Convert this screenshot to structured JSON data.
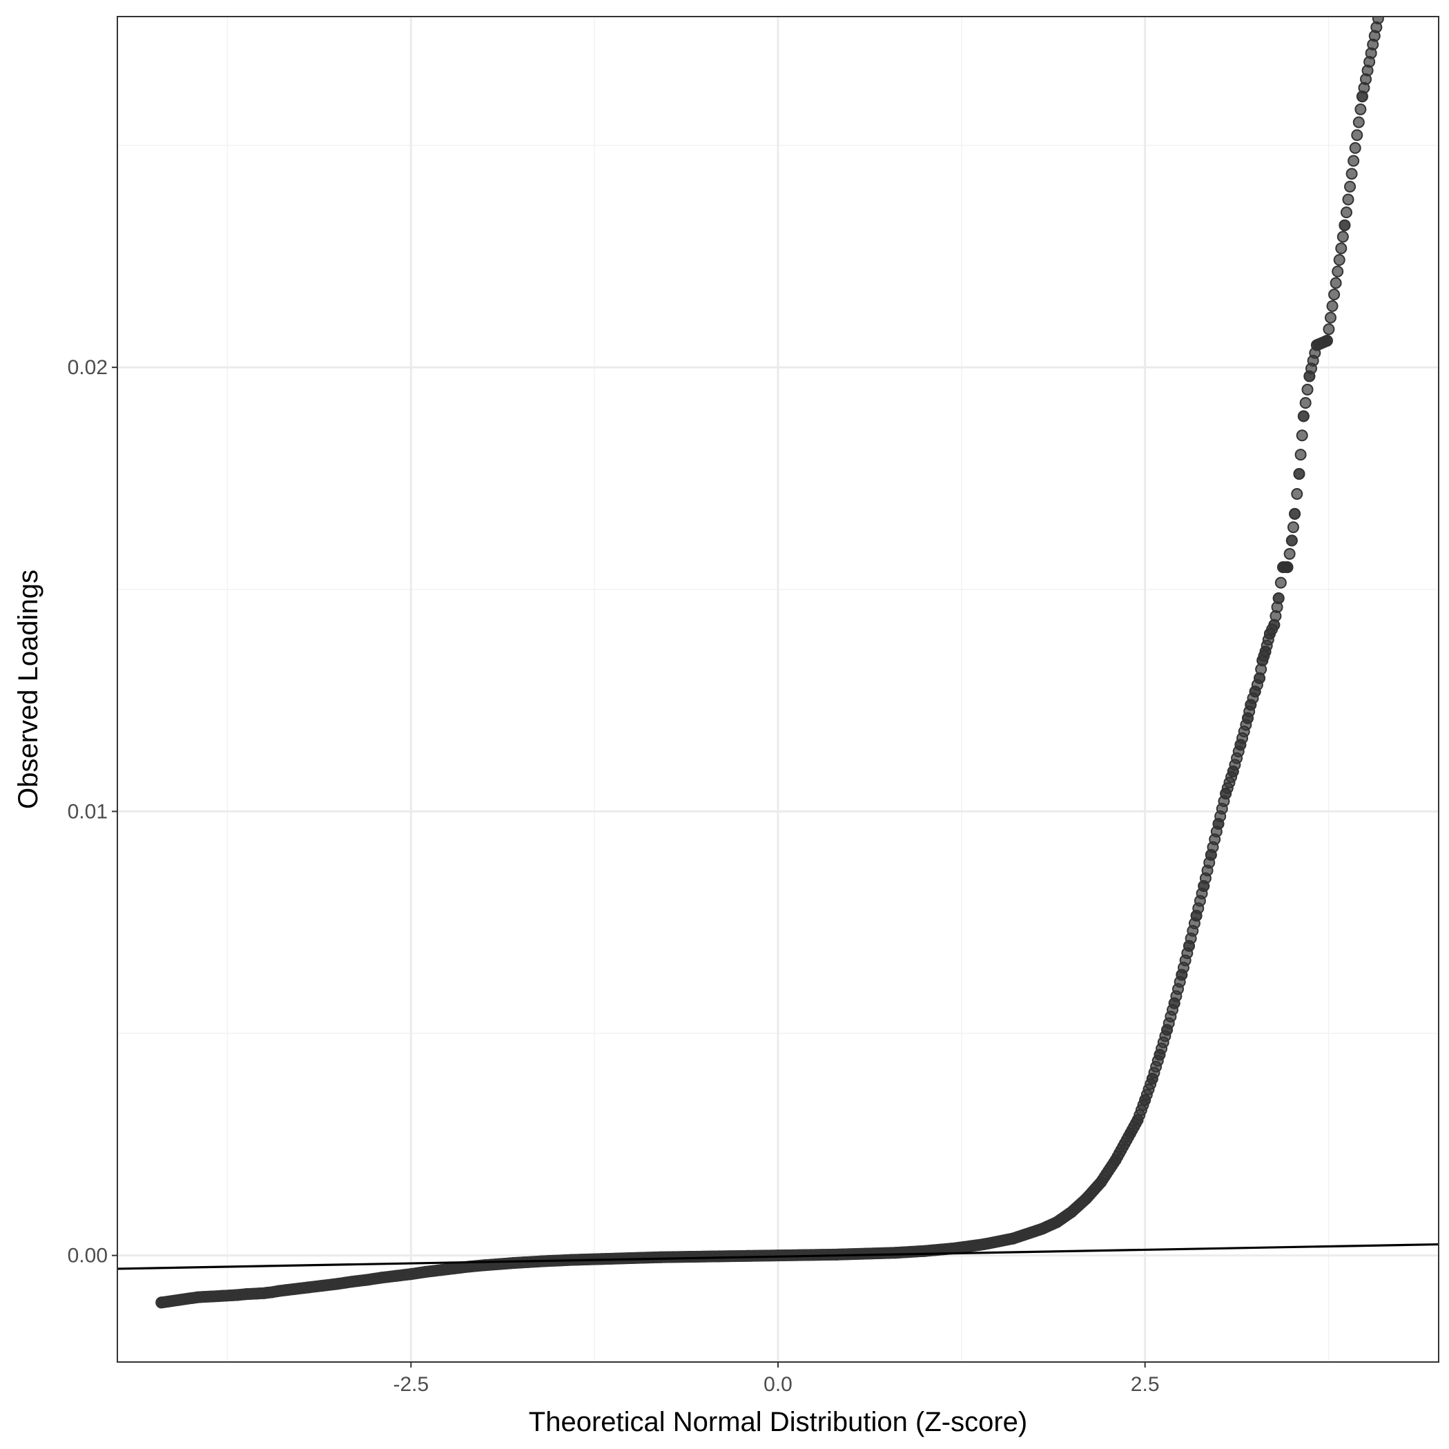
{
  "chart_data": {
    "type": "scatter",
    "title": "",
    "xlabel": "Theoretical Normal Distribution (Z-score)",
    "ylabel": "Observed Loadings",
    "xlim": [
      -4.5,
      4.5
    ],
    "ylim": [
      -0.0024,
      0.0279
    ],
    "x_ticks": [
      {
        "value": -2.5,
        "label": "-2.5"
      },
      {
        "value": 0.0,
        "label": "0.0"
      },
      {
        "value": 2.5,
        "label": "2.5"
      }
    ],
    "y_ticks": [
      {
        "value": 0.0,
        "label": "0.00"
      },
      {
        "value": 0.01,
        "label": "0.01"
      },
      {
        "value": 0.02,
        "label": "0.02"
      }
    ],
    "grid": true,
    "background": "white",
    "point_color": "#333333",
    "point_opacity": 0.65,
    "line_color": "#000000",
    "reference_line": {
      "x1": -4.5,
      "y1": -0.0003,
      "x2": 4.5,
      "y2": 0.00025
    },
    "points": {
      "x": [
        -4.2,
        -3.95,
        -3.78,
        -3.68,
        -3.62,
        -3.56,
        -3.5,
        -3.48,
        -3.45,
        -3.4,
        -3.35,
        -3.3,
        -3.2,
        -3.1,
        -3.0,
        -2.9,
        -2.8,
        -2.7,
        -2.6,
        -2.5,
        -2.4,
        -2.3,
        -2.2,
        -2.1,
        -2.0,
        -1.8,
        -1.6,
        -1.4,
        -1.2,
        -1.0,
        -0.8,
        -0.6,
        -0.4,
        -0.2,
        0.0,
        0.2,
        0.4,
        0.6,
        0.8,
        1.0,
        1.2,
        1.4,
        1.6,
        1.8,
        1.9,
        2.0,
        2.1,
        2.2,
        2.3,
        2.4,
        2.45,
        2.5,
        2.55,
        2.6,
        2.65,
        2.7,
        2.75,
        2.8,
        2.85,
        2.9,
        2.95,
        3.0,
        3.05,
        3.1,
        3.15,
        3.2,
        3.22,
        3.25,
        3.28,
        3.3,
        3.32,
        3.35,
        3.38,
        3.41,
        3.44,
        3.47,
        3.5,
        3.52,
        3.55,
        3.58,
        3.62,
        3.67,
        3.74,
        3.86,
        3.98,
        4.22
      ],
      "y": [
        -0.00106,
        -0.00094,
        -0.00091,
        -0.00089,
        -0.00087,
        -0.00086,
        -0.00085,
        -0.00084,
        -0.00083,
        -0.0008,
        -0.00078,
        -0.00076,
        -0.00072,
        -0.00068,
        -0.00064,
        -0.00059,
        -0.00055,
        -0.0005,
        -0.00046,
        -0.00042,
        -0.00037,
        -0.00033,
        -0.00029,
        -0.00025,
        -0.00022,
        -0.00017,
        -0.00013,
        -0.0001,
        -8e-05,
        -6e-05,
        -4e-05,
        -3e-05,
        -2e-05,
        -1e-05,
        0.0,
        1e-05,
        2e-05,
        4e-05,
        6e-05,
        0.0001,
        0.00016,
        0.00025,
        0.00038,
        0.0006,
        0.00075,
        0.00098,
        0.00128,
        0.00165,
        0.00215,
        0.00275,
        0.00305,
        0.0035,
        0.00398,
        0.00452,
        0.00508,
        0.00568,
        0.00632,
        0.00697,
        0.00765,
        0.00832,
        0.00902,
        0.00972,
        0.0104,
        0.0109,
        0.0115,
        0.0121,
        0.0124,
        0.0127,
        0.013,
        0.0134,
        0.0136,
        0.014,
        0.0142,
        0.0148,
        0.0155,
        0.0155,
        0.0161,
        0.0167,
        0.0176,
        0.0189,
        0.0198,
        0.0205,
        0.0206,
        0.0232,
        0.0261,
        0.03
      ]
    }
  }
}
